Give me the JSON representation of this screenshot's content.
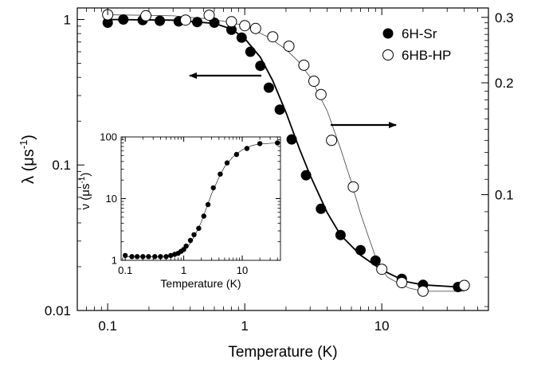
{
  "chart_data": [
    {
      "type": "scatter",
      "title": "",
      "xlabel": "Temperature (K)",
      "ylabel": "λ (μs",
      "ylabel_sup": "-1",
      "ylabel_close": ")",
      "x_scale": "log",
      "y_scale": "log",
      "xlim": [
        0.06,
        60
      ],
      "ylim": [
        0.01,
        1.2
      ],
      "y_right_scale": "log",
      "y_right_lim": [
        0.0488,
        0.318
      ],
      "x_ticks": [
        {
          "value": 0.1,
          "label": "0.1"
        },
        {
          "value": 1,
          "label": "1"
        },
        {
          "value": 10,
          "label": "10"
        }
      ],
      "y_ticks": [
        {
          "value": 0.01,
          "label": "0.01"
        },
        {
          "value": 0.1,
          "label": "0.1"
        },
        {
          "value": 1,
          "label": "1"
        }
      ],
      "y_right_ticks": [
        {
          "value": 0.1,
          "label": "0.1"
        },
        {
          "value": 0.2,
          "label": "0.2"
        },
        {
          "value": 0.3,
          "label": "0.3"
        }
      ],
      "grid": false,
      "legend": "top-right",
      "series": [
        {
          "name": "6H-Sr",
          "marker": "filled-circle",
          "axis": "left",
          "color": "#000000",
          "x": [
            0.1,
            0.13,
            0.18,
            0.24,
            0.33,
            0.45,
            0.6,
            0.8,
            0.95,
            1.1,
            1.3,
            1.5,
            1.8,
            2.2,
            2.8,
            3.6,
            5.0,
            7.0,
            9.0,
            14.0,
            20.0,
            36.0
          ],
          "y": [
            0.95,
            1.0,
            0.99,
            0.98,
            0.97,
            0.96,
            0.95,
            0.85,
            0.75,
            0.6,
            0.48,
            0.34,
            0.24,
            0.15,
            0.085,
            0.05,
            0.033,
            0.026,
            0.022,
            0.0165,
            0.015,
            0.0145
          ]
        },
        {
          "name": "6HB-HP",
          "marker": "open-circle",
          "axis": "right",
          "color": "#000000",
          "x": [
            0.1,
            0.19,
            0.37,
            0.55,
            0.8,
            1.0,
            1.2,
            1.6,
            2.1,
            2.7,
            3.2,
            3.6,
            4.3,
            6.2,
            10.0,
            14.0,
            20.0,
            40.0
          ],
          "y": [
            0.305,
            0.303,
            0.295,
            0.304,
            0.292,
            0.285,
            0.28,
            0.266,
            0.251,
            0.223,
            0.202,
            0.186,
            0.14,
            0.105,
            0.063,
            0.058,
            0.055,
            0.057
          ]
        }
      ],
      "fit_lines": [
        {
          "for_series": "6H-Sr",
          "axis": "left",
          "x": [
            0.1,
            0.3,
            0.6,
            0.8,
            1.0,
            1.3,
            1.6,
            2.0,
            2.5,
            3.0,
            4.0,
            5.0,
            7.0,
            10.0,
            15.0,
            20.0,
            36.0
          ],
          "y": [
            1.0,
            0.99,
            0.94,
            0.86,
            0.74,
            0.55,
            0.38,
            0.23,
            0.13,
            0.085,
            0.047,
            0.033,
            0.024,
            0.019,
            0.0158,
            0.015,
            0.0145
          ]
        },
        {
          "for_series": "6HB-HP",
          "axis": "right",
          "x": [
            0.1,
            0.3,
            0.5,
            0.7,
            1.0,
            1.5,
            2.0,
            2.5,
            3.0,
            4.0,
            5.0,
            6.0,
            7.0,
            8.0,
            9.0,
            10.0,
            11.0,
            13.0,
            16.0,
            20.0,
            40.0
          ],
          "y": [
            0.305,
            0.303,
            0.298,
            0.293,
            0.285,
            0.265,
            0.246,
            0.227,
            0.207,
            0.168,
            0.133,
            0.108,
            0.089,
            0.077,
            0.068,
            0.063,
            0.06,
            0.058,
            0.056,
            0.055,
            0.055
          ]
        }
      ],
      "arrows": [
        {
          "points_to": "left-axis",
          "for_series": "6H-Sr"
        },
        {
          "points_to": "right-axis",
          "for_series": "6HB-HP"
        }
      ]
    },
    {
      "type": "scatter",
      "title": "",
      "xlabel": "Temperature (K)",
      "ylabel": "ν (μs",
      "ylabel_sup": "-1",
      "ylabel_close": ")",
      "x_scale": "log",
      "y_scale": "log",
      "xlim": [
        0.085,
        45
      ],
      "ylim": [
        1,
        100
      ],
      "x_ticks": [
        {
          "value": 0.1,
          "label": "0.1"
        },
        {
          "value": 1,
          "label": "1"
        },
        {
          "value": 10,
          "label": "10"
        }
      ],
      "y_ticks": [
        {
          "value": 1,
          "label": "1"
        },
        {
          "value": 10,
          "label": "10"
        },
        {
          "value": 100,
          "label": "100"
        }
      ],
      "grid": false,
      "series": [
        {
          "marker": "filled-circle",
          "color": "#000000",
          "x": [
            0.1,
            0.13,
            0.16,
            0.2,
            0.25,
            0.32,
            0.4,
            0.5,
            0.6,
            0.7,
            0.8,
            0.9,
            1.0,
            1.1,
            1.3,
            1.5,
            1.8,
            2.2,
            2.6,
            3.2,
            4.2,
            5.5,
            8.0,
            12.0,
            20.0,
            40.0
          ],
          "y": [
            1.2,
            1.15,
            1.15,
            1.15,
            1.15,
            1.15,
            1.15,
            1.15,
            1.2,
            1.25,
            1.3,
            1.4,
            1.5,
            1.7,
            2.1,
            2.6,
            3.3,
            5.2,
            8.0,
            15.0,
            25.0,
            38.0,
            52.0,
            65.0,
            78.0,
            80.0
          ]
        }
      ],
      "fit_lines": [
        {
          "x": [
            0.1,
            0.4,
            0.7,
            1.0,
            1.3,
            1.6,
            2.0,
            2.5,
            3.0,
            4.0,
            5.0,
            7.0,
            10.0,
            15.0,
            20.0,
            40.0
          ],
          "y": [
            1.15,
            1.15,
            1.2,
            1.4,
            1.9,
            2.7,
            4.2,
            7.5,
            12.0,
            22.0,
            33.0,
            48.0,
            62.0,
            73.0,
            77.0,
            80.0
          ]
        }
      ]
    }
  ]
}
